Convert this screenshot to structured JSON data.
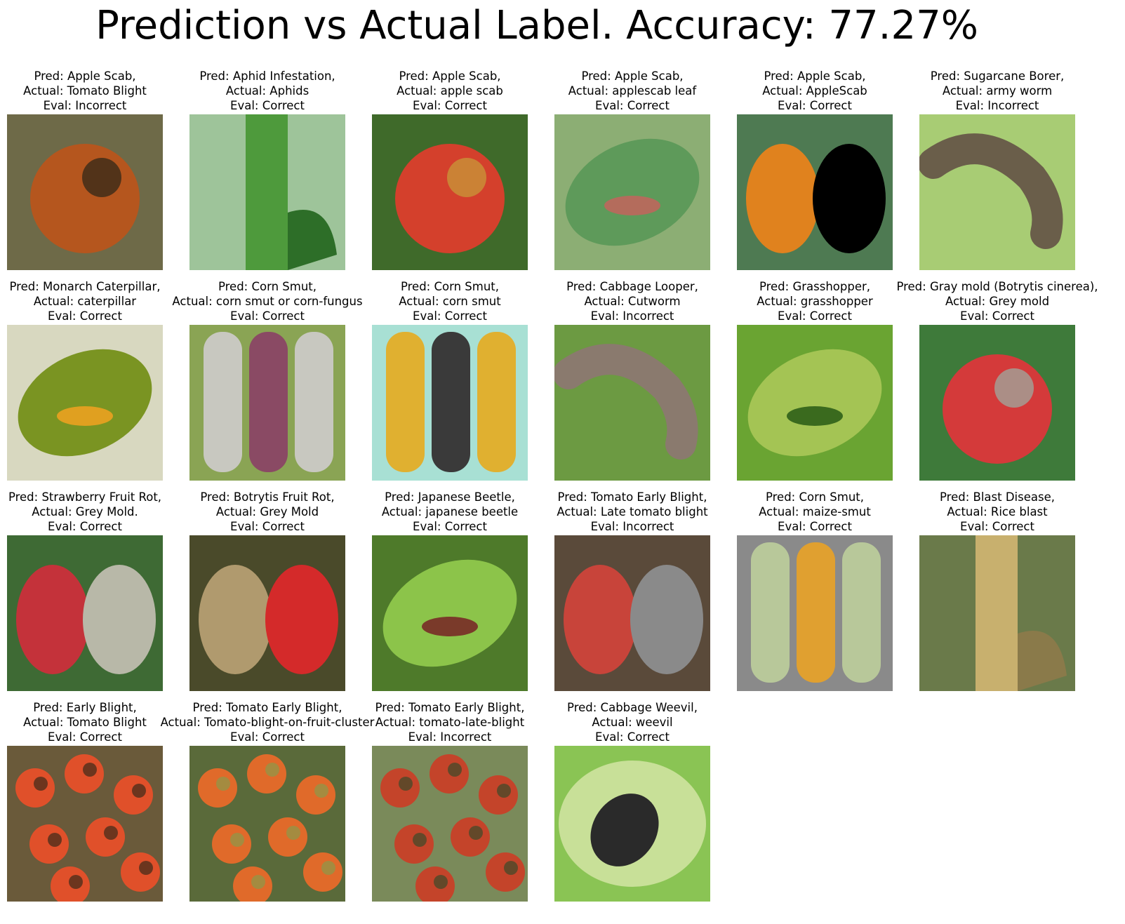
{
  "title": "Prediction vs Actual Label. Accuracy: 77.27%",
  "items": [
    {
      "pred": "Pred: Apple Scab,",
      "actual": "Actual: Tomato Blight",
      "eval": "Eval: Incorrect",
      "bg": "#6e6a48",
      "c1": "#b5561e",
      "c2": "#3a2a18",
      "shape": "round"
    },
    {
      "pred": "Pred: Aphid Infestation,",
      "actual": "Actual: Aphids",
      "eval": "Eval: Correct",
      "bg": "#9ec49a",
      "c1": "#4e9a3c",
      "c2": "#2d6e28",
      "shape": "stem"
    },
    {
      "pred": "Pred: Apple Scab,",
      "actual": "Actual: apple scab",
      "eval": "Eval: Correct",
      "bg": "#3f6a2a",
      "c1": "#d4402c",
      "c2": "#c89238",
      "shape": "round"
    },
    {
      "pred": "Pred: Apple Scab,",
      "actual": "Actual: applescab leaf",
      "eval": "Eval: Correct",
      "bg": "#8cae74",
      "c1": "#5e9a5a",
      "c2": "#b46c5c",
      "shape": "leaf"
    },
    {
      "pred": "Pred: Apple Scab,",
      "actual": "Actual: AppleScab",
      "eval": "Eval: Correct",
      "bg": "#4e7a52",
      "c1": "#e0821e",
      "c2": "#000000",
      "shape": "split"
    },
    {
      "pred": "Pred: Sugarcane Borer,",
      "actual": "Actual: army worm",
      "eval": "Eval: Incorrect",
      "bg": "#a8cc74",
      "c1": "#6a5e4a",
      "c2": "#c8e0a0",
      "shape": "worm"
    },
    {
      "pred": "Pred: Monarch Caterpillar,",
      "actual": "Actual: caterpillar",
      "eval": "Eval: Correct",
      "bg": "#d8d8c0",
      "c1": "#7a9422",
      "c2": "#e0a020",
      "shape": "leaf"
    },
    {
      "pred": "Pred: Corn Smut,",
      "actual": "Actual: corn smut or corn-fungus",
      "eval": "Eval: Correct",
      "bg": "#8aa454",
      "c1": "#c8c8c0",
      "c2": "#8a4a64",
      "shape": "corn"
    },
    {
      "pred": "Pred: Corn Smut,",
      "actual": "Actual: corn smut",
      "eval": "Eval: Correct",
      "bg": "#a8e0d4",
      "c1": "#e0b030",
      "c2": "#3a3a3a",
      "shape": "corn"
    },
    {
      "pred": "Pred: Cabbage Looper,",
      "actual": "Actual: Cutworm",
      "eval": "Eval: Incorrect",
      "bg": "#6c9a42",
      "c1": "#8a7a6e",
      "c2": "#4a7a2e",
      "shape": "worm"
    },
    {
      "pred": "Pred: Grasshopper,",
      "actual": "Actual: grasshopper",
      "eval": "Eval: Correct",
      "bg": "#6aa432",
      "c1": "#a4c454",
      "c2": "#3a6a1e",
      "shape": "leaf"
    },
    {
      "pred": "Pred: Gray mold (Botrytis cinerea),",
      "actual": "Actual: Grey mold",
      "eval": "Eval: Correct",
      "bg": "#3e7a3a",
      "c1": "#d43a3a",
      "c2": "#a0a49a",
      "shape": "round"
    },
    {
      "pred": "Pred: Strawberry Fruit Rot,",
      "actual": "Actual: Grey Mold.",
      "eval": "Eval: Correct",
      "bg": "#3e6a34",
      "c1": "#c4323a",
      "c2": "#b8b8a8",
      "shape": "split"
    },
    {
      "pred": "Pred: Botrytis Fruit Rot,",
      "actual": "Actual: Grey Mold",
      "eval": "Eval: Correct",
      "bg": "#4a4a2a",
      "c1": "#b09a6e",
      "c2": "#d42a2a",
      "shape": "split"
    },
    {
      "pred": "Pred: Japanese Beetle,",
      "actual": "Actual: japanese beetle",
      "eval": "Eval: Correct",
      "bg": "#4e7a2a",
      "c1": "#8cc44a",
      "c2": "#7a3a2a",
      "shape": "leaf"
    },
    {
      "pred": "Pred: Tomato Early Blight,",
      "actual": "Actual: Late tomato blight",
      "eval": "Eval: Incorrect",
      "bg": "#5a4a3a",
      "c1": "#c8443a",
      "c2": "#8a8a8a",
      "shape": "split"
    },
    {
      "pred": "Pred: Corn Smut,",
      "actual": "Actual: maize-smut",
      "eval": "Eval: Correct",
      "bg": "#8a8a8a",
      "c1": "#b8c89a",
      "c2": "#e0a030",
      "shape": "corn"
    },
    {
      "pred": "Pred: Blast Disease,",
      "actual": "Actual: Rice blast",
      "eval": "Eval: Correct",
      "bg": "#6a7a4a",
      "c1": "#c8b06e",
      "c2": "#8a7a4a",
      "shape": "stem"
    },
    {
      "pred": "Pred: Early Blight,",
      "actual": "Actual: Tomato Blight",
      "eval": "Eval: Correct",
      "bg": "#6a5a3a",
      "c1": "#e0502a",
      "c2": "#3a2a1a",
      "shape": "many"
    },
    {
      "pred": "Pred: Tomato Early Blight,",
      "actual": "Actual: Tomato-blight-on-fruit-cluster",
      "eval": "Eval: Correct",
      "bg": "#5a6a3a",
      "c1": "#e06a2a",
      "c2": "#8a9a4a",
      "shape": "many"
    },
    {
      "pred": "Pred: Tomato Early Blight,",
      "actual": "Actual: tomato-late-blight",
      "eval": "Eval: Incorrect",
      "bg": "#7a8a5a",
      "c1": "#c4442a",
      "c2": "#3a4a2a",
      "shape": "many"
    },
    {
      "pred": "Pred: Cabbage Weevil,",
      "actual": "Actual: weevil",
      "eval": "Eval: Correct",
      "bg": "#8ac454",
      "c1": "#2a2a2a",
      "c2": "#c8e098",
      "shape": "bug"
    }
  ]
}
